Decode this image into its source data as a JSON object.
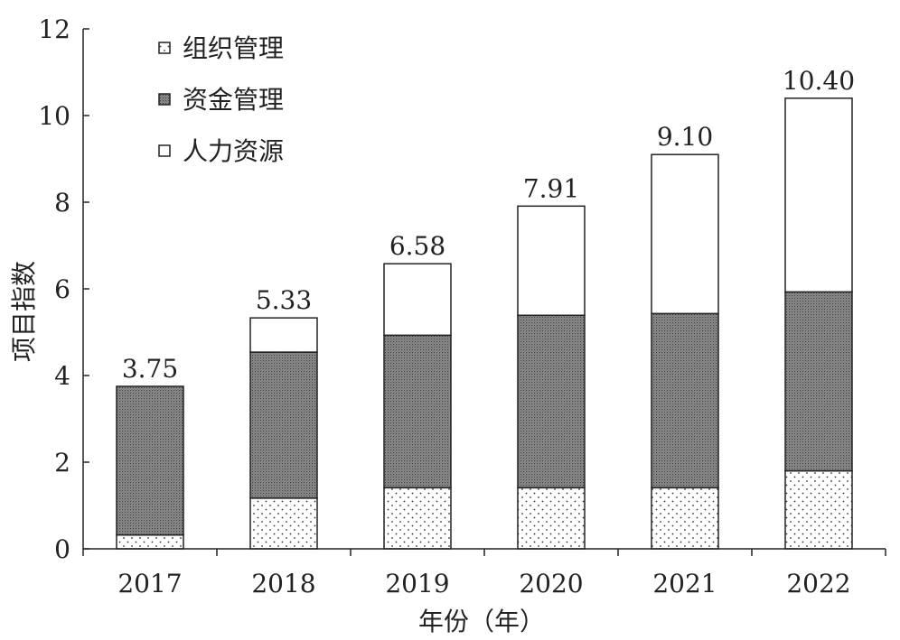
{
  "chart_data": {
    "type": "bar",
    "stacked": true,
    "categories": [
      "2017",
      "2018",
      "2019",
      "2020",
      "2021",
      "2022"
    ],
    "series": [
      {
        "name": "组织管理",
        "values": [
          0.32,
          1.17,
          1.41,
          1.41,
          1.41,
          1.8
        ],
        "pattern": "dots-sparse"
      },
      {
        "name": "资金管理",
        "values": [
          3.43,
          3.37,
          3.52,
          3.98,
          4.02,
          4.13
        ],
        "pattern": "dots-dense"
      },
      {
        "name": "人力资源",
        "values": [
          0.0,
          0.79,
          1.65,
          2.52,
          3.67,
          4.47
        ],
        "pattern": "none"
      }
    ],
    "totals": [
      "3.75",
      "5.33",
      "6.58",
      "7.91",
      "9.10",
      "10.40"
    ],
    "xlabel": "年份（年）",
    "ylabel": "项目指数",
    "ylim": [
      0,
      12
    ],
    "yticks": [
      "0",
      "2",
      "4",
      "6",
      "8",
      "10",
      "12"
    ],
    "grid": false,
    "legend_position": "top-left"
  }
}
